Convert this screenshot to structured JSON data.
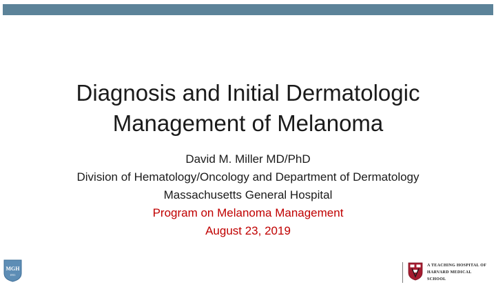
{
  "slide": {
    "title_line1": "Diagnosis and Initial Dermatologic",
    "title_line2": "Management of Melanoma",
    "author": "David M. Miller MD/PhD",
    "division": "Division of Hematology/Oncology and Department of Dermatology",
    "hospital": "Massachusetts General Hospital",
    "program": "Program on Melanoma Management",
    "date": "August 23, 2019"
  },
  "footer": {
    "mgh_logo_text": "MGH",
    "mgh_logo_year": "1811",
    "hms_line1": "A Teaching Hospital of",
    "hms_line2": "Harvard Medical",
    "hms_line3": "School"
  },
  "colors": {
    "top_bar": "#5c8399",
    "accent_red": "#c00000",
    "mgh_blue": "#5d8db5",
    "hms_crimson": "#a51c30"
  }
}
